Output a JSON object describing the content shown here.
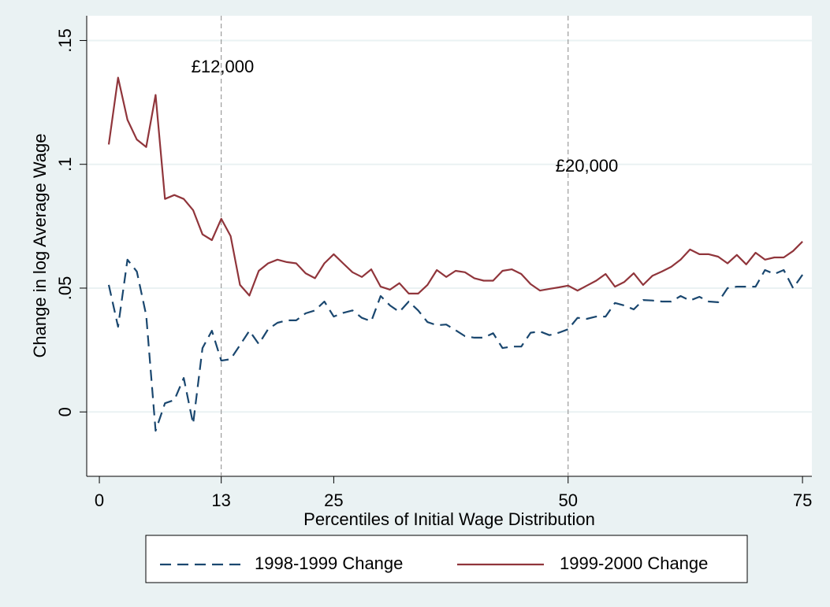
{
  "chart_data": {
    "type": "line",
    "xlabel": "Percentiles of Initial Wage Distribution",
    "ylabel": "Change in log Average Wage",
    "x": [
      1,
      2,
      3,
      4,
      5,
      6,
      7,
      8,
      9,
      10,
      11,
      12,
      13,
      14,
      15,
      16,
      17,
      18,
      19,
      20,
      21,
      22,
      23,
      24,
      25,
      26,
      27,
      28,
      29,
      30,
      31,
      32,
      33,
      34,
      35,
      36,
      37,
      38,
      39,
      40,
      41,
      42,
      43,
      44,
      45,
      46,
      47,
      48,
      49,
      50,
      51,
      52,
      53,
      54,
      55,
      56,
      57,
      58,
      59,
      60,
      61,
      62,
      63,
      64,
      65,
      66,
      67,
      68,
      69,
      70,
      71,
      72,
      73,
      74,
      75
    ],
    "series": [
      {
        "name": "1998-1999 Change",
        "color": "#1a476f",
        "dashed": true,
        "values": [
          0.0513,
          0.0344,
          0.0615,
          0.0567,
          0.039,
          -0.0076,
          0.0035,
          0.0048,
          0.0137,
          -0.0048,
          0.0258,
          0.0328,
          0.0207,
          0.0213,
          0.027,
          0.0328,
          0.0274,
          0.0334,
          0.036,
          0.037,
          0.037,
          0.0398,
          0.041,
          0.0446,
          0.0385,
          0.04,
          0.041,
          0.038,
          0.0366,
          0.0468,
          0.043,
          0.0404,
          0.0446,
          0.041,
          0.0363,
          0.035,
          0.0353,
          0.033,
          0.0306,
          0.03,
          0.03,
          0.0318,
          0.0258,
          0.0264,
          0.0264,
          0.032,
          0.0325,
          0.031,
          0.032,
          0.0334,
          0.038,
          0.0376,
          0.0385,
          0.0385,
          0.044,
          0.043,
          0.0414,
          0.0452,
          0.045,
          0.0446,
          0.0446,
          0.0468,
          0.045,
          0.0465,
          0.0446,
          0.0443,
          0.05,
          0.0506,
          0.0506,
          0.0506,
          0.0573,
          0.0557,
          0.0573,
          0.05,
          0.0554
        ]
      },
      {
        "name": "1999-2000 Change",
        "color": "#90353b",
        "dashed": false,
        "values": [
          0.108,
          0.135,
          0.118,
          0.11,
          0.107,
          0.128,
          0.086,
          0.0876,
          0.086,
          0.0815,
          0.0717,
          0.0694,
          0.078,
          0.071,
          0.0513,
          0.047,
          0.057,
          0.06,
          0.0615,
          0.0605,
          0.06,
          0.056,
          0.054,
          0.06,
          0.0637,
          0.06,
          0.0564,
          0.0545,
          0.0576,
          0.0506,
          0.0494,
          0.052,
          0.0478,
          0.0478,
          0.0513,
          0.0573,
          0.0545,
          0.057,
          0.0564,
          0.054,
          0.053,
          0.053,
          0.057,
          0.0576,
          0.0557,
          0.0516,
          0.049,
          0.0497,
          0.0503,
          0.051,
          0.049,
          0.051,
          0.053,
          0.0557,
          0.0506,
          0.0525,
          0.056,
          0.0513,
          0.055,
          0.0567,
          0.0586,
          0.0615,
          0.0656,
          0.0637,
          0.0637,
          0.0627,
          0.06,
          0.0634,
          0.0596,
          0.0643,
          0.0615,
          0.0624,
          0.0624,
          0.065,
          0.0688
        ]
      }
    ],
    "xlim": [
      -1.35,
      76
    ],
    "ylim": [
      -0.026,
      0.16
    ],
    "xticks": [
      0,
      13,
      25,
      50,
      75
    ],
    "yticks": [
      0,
      {
        "value": 0.05,
        "label": ".05"
      },
      {
        "value": 0.1,
        "label": ".1"
      },
      {
        "value": 0.15,
        "label": ".15"
      }
    ],
    "grid": true,
    "vlines": [
      {
        "x": 13,
        "label": "£12,000"
      },
      {
        "x": 50,
        "label": "£20,000"
      }
    ],
    "legend": "bottom"
  }
}
